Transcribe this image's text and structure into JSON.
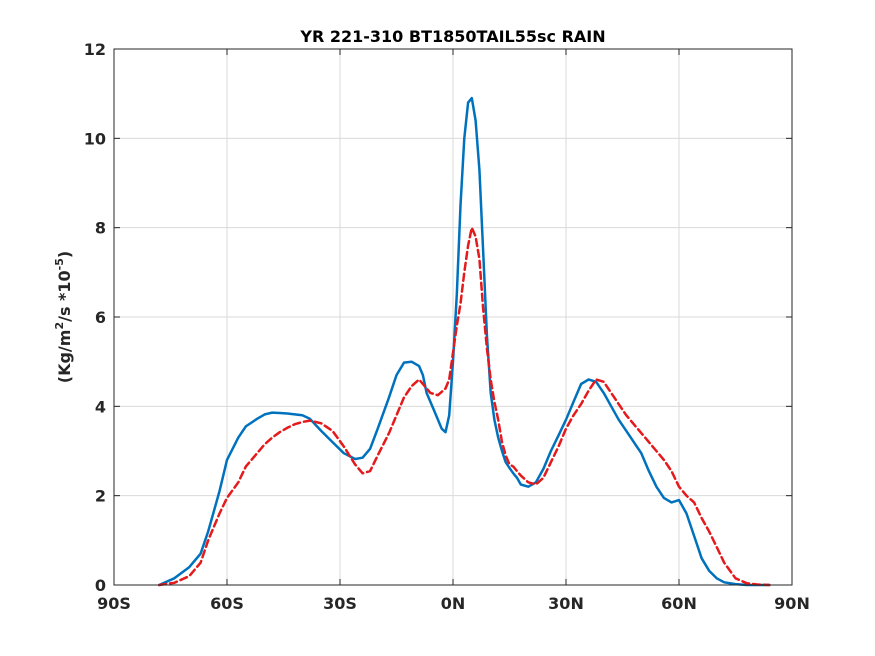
{
  "chart_data": {
    "type": "line",
    "title": "YR 221-310 BT1850TAIL55sc RAIN",
    "ylabel_main": "(Kg/m",
    "ylabel_sup1": "2",
    "ylabel_mid": "/s   *10",
    "ylabel_sup2": "-5",
    "ylabel_end": ")",
    "xlim": [
      -90,
      90
    ],
    "ylim": [
      0,
      12
    ],
    "xticks": [
      -90,
      -60,
      -30,
      0,
      30,
      60,
      90
    ],
    "xtick_labels": [
      "90S",
      "60S",
      "30S",
      "0N",
      "30N",
      "60N",
      "90N"
    ],
    "yticks": [
      0,
      2,
      4,
      6,
      8,
      10,
      12
    ],
    "ytick_labels": [
      "0",
      "2",
      "4",
      "6",
      "8",
      "10",
      "12"
    ],
    "grid": true,
    "series": [
      {
        "color": "#0072BD",
        "style": "solid",
        "x": [
          -78,
          -74,
          -70,
          -67,
          -65,
          -62,
          -60,
          -57,
          -55,
          -52,
          -50,
          -48,
          -46,
          -44,
          -42,
          -40,
          -38,
          -35,
          -32,
          -29,
          -26,
          -24,
          -22,
          -20,
          -17,
          -15,
          -13,
          -11,
          -9,
          -8,
          -7,
          -5,
          -3,
          -2,
          -1,
          0,
          1,
          2,
          3,
          4,
          5,
          6,
          7,
          8,
          9,
          10,
          11,
          12,
          13,
          14,
          15,
          16,
          17,
          18,
          20,
          22,
          24,
          26,
          28,
          30,
          32,
          34,
          36,
          38,
          40,
          42,
          44,
          46,
          48,
          50,
          52,
          54,
          56,
          58,
          60,
          62,
          64,
          66,
          68,
          70,
          72,
          75,
          78,
          81,
          84
        ],
        "y": [
          0.0,
          0.15,
          0.4,
          0.7,
          1.2,
          2.1,
          2.8,
          3.3,
          3.55,
          3.72,
          3.82,
          3.86,
          3.85,
          3.84,
          3.82,
          3.8,
          3.72,
          3.45,
          3.2,
          2.95,
          2.82,
          2.85,
          3.05,
          3.5,
          4.2,
          4.7,
          4.98,
          5.0,
          4.9,
          4.7,
          4.3,
          3.9,
          3.5,
          3.42,
          3.8,
          5.0,
          6.5,
          8.5,
          10.0,
          10.8,
          10.9,
          10.4,
          9.3,
          7.5,
          5.6,
          4.3,
          3.7,
          3.3,
          3.0,
          2.75,
          2.62,
          2.5,
          2.4,
          2.25,
          2.2,
          2.3,
          2.6,
          3.0,
          3.35,
          3.7,
          4.1,
          4.5,
          4.6,
          4.55,
          4.3,
          4.0,
          3.7,
          3.45,
          3.2,
          2.95,
          2.55,
          2.2,
          1.95,
          1.85,
          1.9,
          1.6,
          1.1,
          0.6,
          0.32,
          0.15,
          0.06,
          0.02,
          0.0,
          0.0,
          0.0
        ]
      },
      {
        "color": "#E41A1C",
        "style": "dashed",
        "x": [
          -78,
          -74,
          -70,
          -67,
          -65,
          -62,
          -60,
          -57,
          -55,
          -52,
          -50,
          -48,
          -46,
          -44,
          -42,
          -40,
          -38,
          -35,
          -32,
          -29,
          -26,
          -24,
          -22,
          -20,
          -17,
          -15,
          -13,
          -11,
          -9,
          -8,
          -6,
          -4,
          -2,
          -1,
          0,
          1,
          2,
          3,
          4,
          5,
          6,
          7,
          8,
          9,
          10,
          11,
          12,
          13,
          14,
          15,
          16,
          17,
          18,
          20,
          22,
          24,
          26,
          28,
          30,
          32,
          34,
          36,
          38,
          40,
          42,
          44,
          46,
          48,
          50,
          52,
          54,
          56,
          58,
          60,
          62,
          64,
          66,
          68,
          70,
          72,
          75,
          78,
          81,
          84
        ],
        "y": [
          0.0,
          0.05,
          0.2,
          0.5,
          1.0,
          1.6,
          1.95,
          2.3,
          2.65,
          2.95,
          3.15,
          3.3,
          3.42,
          3.52,
          3.6,
          3.65,
          3.68,
          3.62,
          3.45,
          3.1,
          2.7,
          2.5,
          2.55,
          2.9,
          3.4,
          3.8,
          4.2,
          4.45,
          4.6,
          4.5,
          4.3,
          4.25,
          4.4,
          4.6,
          5.2,
          5.8,
          6.3,
          7.0,
          7.6,
          8.0,
          7.8,
          7.3,
          6.2,
          5.3,
          4.6,
          4.1,
          3.7,
          3.2,
          2.9,
          2.7,
          2.65,
          2.55,
          2.45,
          2.3,
          2.25,
          2.4,
          2.75,
          3.1,
          3.5,
          3.8,
          4.05,
          4.35,
          4.6,
          4.55,
          4.3,
          4.05,
          3.8,
          3.6,
          3.4,
          3.2,
          3.0,
          2.8,
          2.55,
          2.2,
          2.0,
          1.85,
          1.5,
          1.2,
          0.85,
          0.5,
          0.15,
          0.04,
          0.01,
          0.0
        ]
      }
    ]
  }
}
